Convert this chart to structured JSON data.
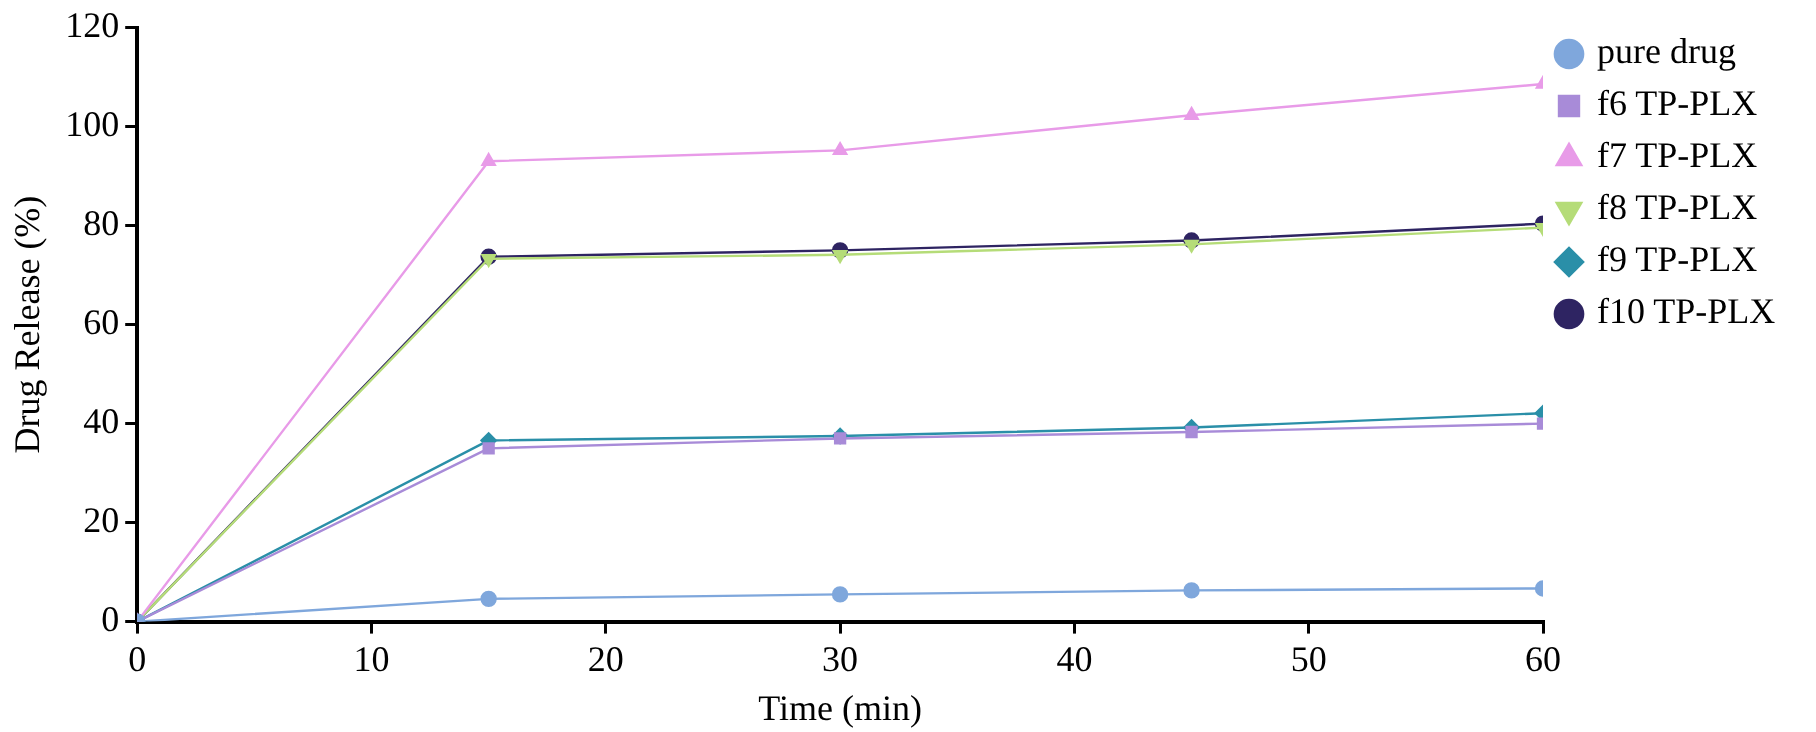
{
  "chart_data": {
    "type": "line",
    "xlabel": "Time (min)",
    "ylabel": "Drug Release (%)",
    "x": [
      0,
      15,
      30,
      45,
      60
    ],
    "xlim": [
      0,
      60
    ],
    "xticks": [
      0,
      10,
      20,
      30,
      40,
      50,
      60
    ],
    "ylim": [
      0,
      120
    ],
    "yticks": [
      0,
      20,
      40,
      60,
      80,
      100,
      120
    ],
    "grid": false,
    "legend": "right",
    "series": [
      {
        "name": "pure drug",
        "color": "#7fa7dc",
        "marker": "circle",
        "values": [
          0,
          4.6,
          5.5,
          6.3,
          6.7
        ]
      },
      {
        "name": "f6 TP-PLX",
        "color": "#a88bd8",
        "marker": "square",
        "values": [
          0,
          35,
          37,
          38.3,
          40
        ]
      },
      {
        "name": "f7 TP-PLX",
        "color": "#e89be8",
        "marker": "triangle",
        "values": [
          0,
          93,
          95.2,
          102.3,
          108.6
        ]
      },
      {
        "name": "f8 TP-PLX",
        "color": "#b5dc78",
        "marker": "triangle-down",
        "values": [
          0,
          73.3,
          74.1,
          76.2,
          79.6
        ]
      },
      {
        "name": "f9 TP-PLX",
        "color": "#2a8fa8",
        "marker": "diamond",
        "values": [
          0,
          36.6,
          37.5,
          39.2,
          42.1
        ]
      },
      {
        "name": "f10 TP-PLX",
        "color": "#2e2462",
        "marker": "circle",
        "values": [
          0,
          73.7,
          75,
          77,
          80.4
        ]
      }
    ]
  }
}
